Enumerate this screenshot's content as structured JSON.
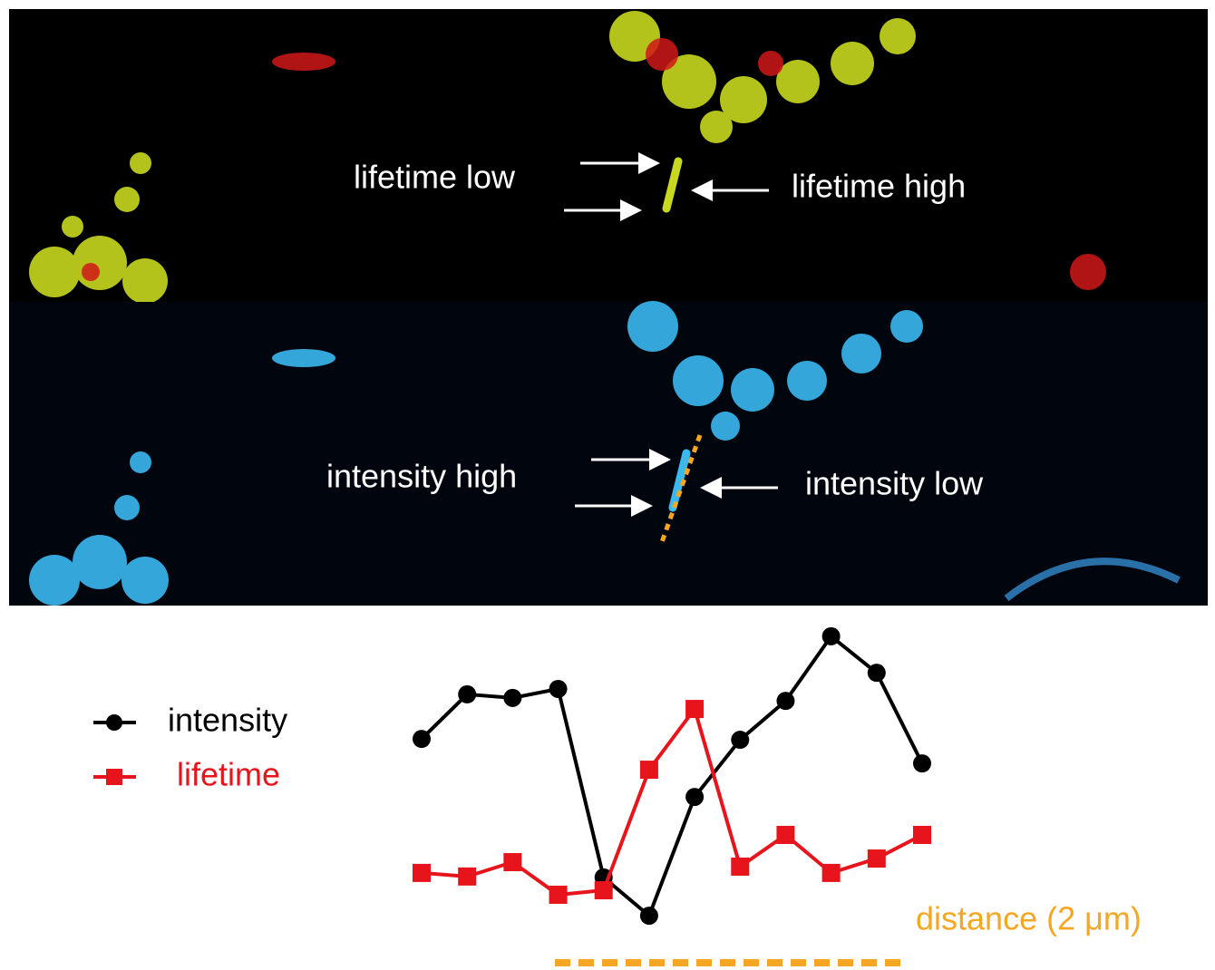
{
  "chart_data": {
    "type": "line",
    "categories": [
      null,
      null,
      null,
      null,
      null,
      null,
      null,
      null,
      null,
      null,
      null,
      null
    ],
    "series": [
      {
        "name": "intensity",
        "color": "#000000",
        "marker": "circle",
        "values": [
          62.1,
          77.0,
          75.8,
          78.8,
          15.8,
          3.0,
          42.7,
          61.8,
          74.8,
          96.4,
          84.2,
          53.9
        ]
      },
      {
        "name": "lifetime",
        "color": "#e8141c",
        "marker": "square",
        "values": [
          17.3,
          16.1,
          20.9,
          10.0,
          11.5,
          51.8,
          72.1,
          19.4,
          30.0,
          17.3,
          22.1,
          30.0
        ]
      }
    ],
    "ylim": [
      0,
      100
    ],
    "legend": "left",
    "annotations": [
      "lifetime low",
      "lifetime high",
      "intensity high",
      "intensity low",
      "distance (2 μm)"
    ]
  }
}
